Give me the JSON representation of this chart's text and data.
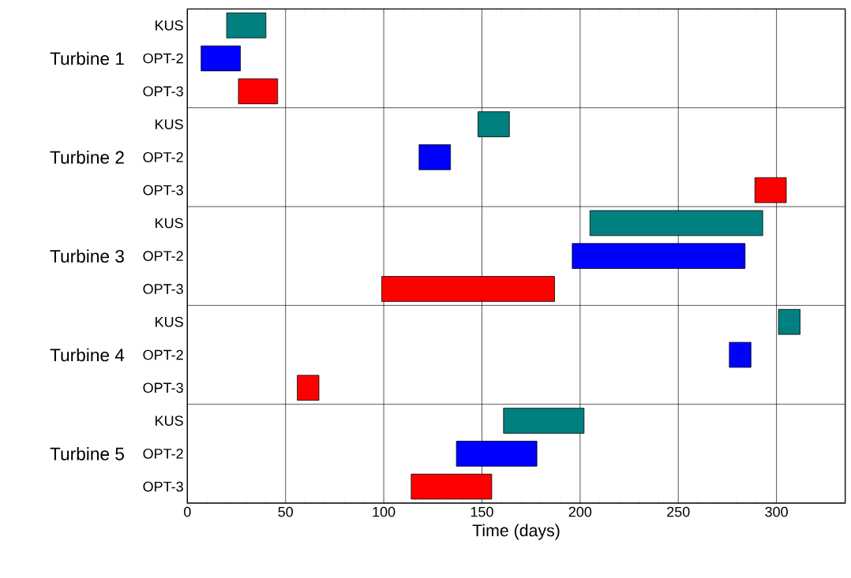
{
  "chart_data": {
    "type": "bar",
    "orientation": "horizontal",
    "xlabel": "Time (days)",
    "categories": [
      "KUS",
      "OPT-2",
      "OPT-3",
      "KUS",
      "OPT-2",
      "OPT-3",
      "KUS",
      "OPT-2",
      "OPT-3",
      "KUS",
      "OPT-2",
      "OPT-3",
      "KUS",
      "OPT-2",
      "OPT-3"
    ],
    "base": [
      20,
      7,
      26,
      148,
      118,
      289,
      205,
      196,
      99,
      301,
      276,
      56,
      161,
      137,
      114
    ],
    "values": [
      20,
      20,
      20,
      16,
      16,
      16,
      88,
      88,
      88,
      11,
      11,
      11,
      41,
      41,
      41
    ],
    "colors": [
      "#008080",
      "#0000ff",
      "#ff0000",
      "#008080",
      "#0000ff",
      "#ff0000",
      "#008080",
      "#0000ff",
      "#ff0000",
      "#008080",
      "#0000ff",
      "#ff0000",
      "#008080",
      "#0000ff",
      "#ff0000"
    ],
    "xlim": [
      0,
      335
    ],
    "xticks": [
      0,
      50,
      100,
      150,
      200,
      250,
      300
    ],
    "grid": "x",
    "annotations": [
      "Turbine 1",
      "Turbine 2",
      "Turbine 3",
      "Turbine 4",
      "Turbine 5"
    ]
  }
}
